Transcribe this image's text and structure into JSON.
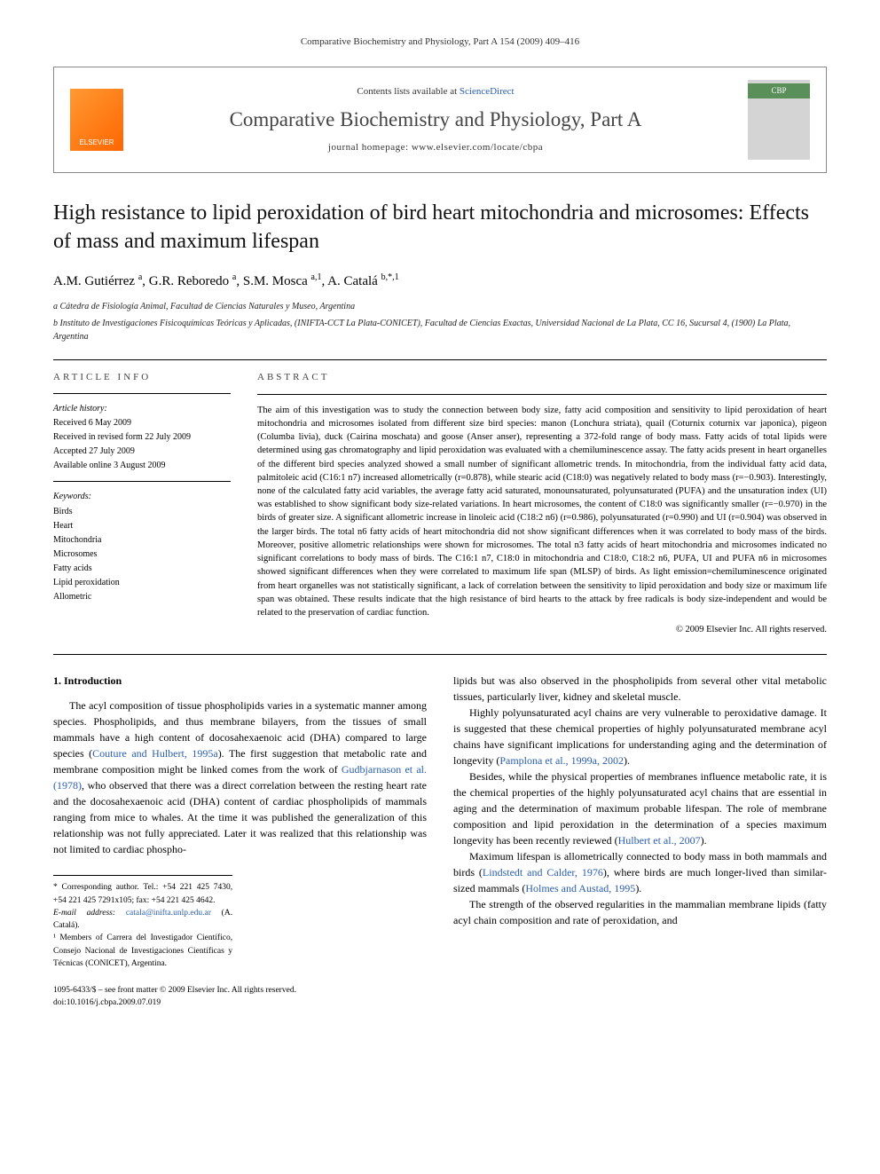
{
  "header": {
    "citation": "Comparative Biochemistry and Physiology, Part A 154 (2009) 409–416"
  },
  "banner": {
    "publisher": "ELSEVIER",
    "contents_prefix": "Contents lists available at ",
    "contents_link": "ScienceDirect",
    "journal_title": "Comparative Biochemistry and Physiology, Part A",
    "homepage_prefix": "journal homepage: ",
    "homepage_url": "www.elsevier.com/locate/cbpa",
    "cover_badge": "CBP"
  },
  "article": {
    "title": "High resistance to lipid peroxidation of bird heart mitochondria and microsomes: Effects of mass and maximum lifespan",
    "authors_html": "A.M. Gutiérrez <sup>a</sup>, G.R. Reboredo <sup>a</sup>, S.M. Mosca <sup>a,1</sup>, A. Catalá <sup>b,*,1</sup>",
    "affiliations": [
      "a Cátedra de Fisiología Animal, Facultad de Ciencias Naturales y Museo, Argentina",
      "b Instituto de Investigaciones Fisicoquímicas Teóricas y Aplicadas, (INIFTA-CCT La Plata-CONICET), Facultad de Ciencias Exactas, Universidad Nacional de La Plata, CC 16, Sucursal 4, (1900) La Plata, Argentina"
    ]
  },
  "info": {
    "heading": "ARTICLE INFO",
    "history_label": "Article history:",
    "history": [
      "Received 6 May 2009",
      "Received in revised form 22 July 2009",
      "Accepted 27 July 2009",
      "Available online 3 August 2009"
    ],
    "keywords_label": "Keywords:",
    "keywords": [
      "Birds",
      "Heart",
      "Mitochondria",
      "Microsomes",
      "Fatty acids",
      "Lipid peroxidation",
      "Allometric"
    ]
  },
  "abstract": {
    "heading": "ABSTRACT",
    "text": "The aim of this investigation was to study the connection between body size, fatty acid composition and sensitivity to lipid peroxidation of heart mitochondria and microsomes isolated from different size bird species: manon (Lonchura striata), quail (Coturnix coturnix var japonica), pigeon (Columba livia), duck (Cairina moschata) and goose (Anser anser), representing a 372-fold range of body mass. Fatty acids of total lipids were determined using gas chromatography and lipid peroxidation was evaluated with a chemiluminescence assay. The fatty acids present in heart organelles of the different bird species analyzed showed a small number of significant allometric trends. In mitochondria, from the individual fatty acid data, palmitoleic acid (C16:1 n7) increased allometrically (r=0.878), while stearic acid (C18:0) was negatively related to body mass (r=−0.903). Interestingly, none of the calculated fatty acid variables, the average fatty acid saturated, monounsaturated, polyunsaturated (PUFA) and the unsaturation index (UI) was established to show significant body size-related variations. In heart microsomes, the content of C18:0 was significantly smaller (r=−0.970) in the birds of greater size. A significant allometric increase in linoleic acid (C18:2 n6) (r=0.986), polyunsaturated (r=0.990) and UI (r=0.904) was observed in the larger birds. The total n6 fatty acids of heart mitochondria did not show significant differences when it was correlated to body mass of the birds. Moreover, positive allometric relationships were shown for microsomes. The total n3 fatty acids of heart mitochondria and microsomes indicated no significant correlations to body mass of birds. The C16:1 n7, C18:0 in mitochondria and C18:0, C18:2 n6, PUFA, UI and PUFA n6 in microsomes showed significant differences when they were correlated to maximum life span (MLSP) of birds. As light emission=chemiluminescence originated from heart organelles was not statistically significant, a lack of correlation between the sensitivity to lipid peroxidation and body size or maximum life span was obtained. These results indicate that the high resistance of bird hearts to the attack by free radicals is body size-independent and would be related to the preservation of cardiac function.",
    "copyright": "© 2009 Elsevier Inc. All rights reserved."
  },
  "body": {
    "section_heading": "1. Introduction",
    "col1_p1_pre": "The acyl composition of tissue phospholipids varies in a systematic manner among species. Phospholipids, and thus membrane bilayers, from the tissues of small mammals have a high content of docosahexaenoic acid (DHA) compared to large species (",
    "col1_p1_link1": "Couture and Hulbert, 1995a",
    "col1_p1_mid": "). The first suggestion that metabolic rate and membrane composition might be linked comes from the work of ",
    "col1_p1_link2": "Gudbjarnason et al. (1978)",
    "col1_p1_post": ", who observed that there was a direct correlation between the resting heart rate and the docosahexaenoic acid (DHA) content of cardiac phospholipids of mammals ranging from mice to whales. At the time it was published the generalization of this relationship was not fully appreciated. Later it was realized that this relationship was not limited to cardiac phospho-",
    "col2_p1": "lipids but was also observed in the phospholipids from several other vital metabolic tissues, particularly liver, kidney and skeletal muscle.",
    "col2_p2_pre": "Highly polyunsaturated acyl chains are very vulnerable to peroxidative damage. It is suggested that these chemical properties of highly polyunsaturated membrane acyl chains have significant implications for understanding aging and the determination of longevity (",
    "col2_p2_link": "Pamplona et al., 1999a, 2002",
    "col2_p2_post": ").",
    "col2_p3_pre": "Besides, while the physical properties of membranes influence metabolic rate, it is the chemical properties of the highly polyunsaturated acyl chains that are essential in aging and the determination of maximum probable lifespan. The role of membrane composition and lipid peroxidation in the determination of a species maximum longevity has been recently reviewed (",
    "col2_p3_link": "Hulbert et al., 2007",
    "col2_p3_post": ").",
    "col2_p4_pre": "Maximum lifespan is allometrically connected to body mass in both mammals and birds (",
    "col2_p4_link1": "Lindstedt and Calder, 1976",
    "col2_p4_mid": "), where birds are much longer-lived than similar-sized mammals (",
    "col2_p4_link2": "Holmes and Austad, 1995",
    "col2_p4_post": ").",
    "col2_p5": "The strength of the observed regularities in the mammalian membrane lipids (fatty acyl chain composition and rate of peroxidation, and"
  },
  "footnotes": {
    "corr": "* Corresponding author. Tel.: +54 221 425 7430, +54 221 425 7291x105; fax: +54 221 425 4642.",
    "email_label": "E-mail address: ",
    "email": "catala@inifta.unlp.edu.ar",
    "email_post": " (A. Catalá).",
    "member": "¹ Members of Carrera del Investigador Científico, Consejo Nacional de Investigaciones Científicas y Técnicas (CONICET), Argentina."
  },
  "footer": {
    "issn": "1095-6433/$ – see front matter © 2009 Elsevier Inc. All rights reserved.",
    "doi": "doi:10.1016/j.cbpa.2009.07.019"
  },
  "style": {
    "link_color": "#2a5db0",
    "body_width": 992,
    "text_color": "#000000",
    "bg_color": "#ffffff"
  }
}
